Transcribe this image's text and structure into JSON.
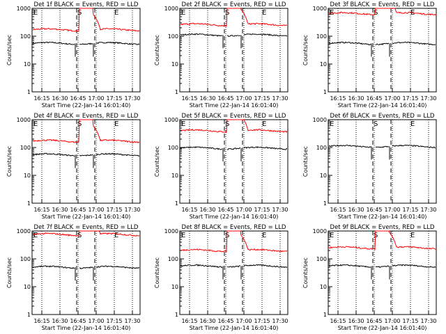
{
  "chart_data": [
    {
      "type": "line",
      "title": "Det 1f BLACK = Events, RED = LLD",
      "xlabel": "Start Time (22-Jan-14 16:01:40)",
      "ylabel": "Counts/sec",
      "yscale": "log",
      "ylim": [
        1,
        1000
      ],
      "x_ticks": [
        "16:15",
        "16:30",
        "16:45",
        "17:00",
        "17:15",
        "17:30"
      ],
      "y_ticks": [
        "1",
        "10",
        "100",
        "1000"
      ],
      "annotations": [
        "E",
        "S",
        "E"
      ],
      "series": [
        {
          "color": "#000000",
          "level": 55,
          "spike": false
        },
        {
          "color": "#ff0000",
          "level": 170,
          "spike": true
        }
      ]
    },
    {
      "type": "line",
      "title": "Det 2f BLACK = Events, RED = LLD",
      "xlabel": "Start Time (22-Jan-14 16:01:40)",
      "ylabel": "Counts/sec",
      "yscale": "log",
      "ylim": [
        1,
        1000
      ],
      "x_ticks": [
        "16:15",
        "16:30",
        "16:45",
        "17:00",
        "17:15",
        "17:30"
      ],
      "y_ticks": [
        "1",
        "10",
        "100",
        "1000"
      ],
      "annotations": [
        "E",
        "S",
        "E"
      ],
      "series": [
        {
          "color": "#000000",
          "level": 110,
          "spike": false
        },
        {
          "color": "#ff0000",
          "level": 260,
          "spike": true
        }
      ]
    },
    {
      "type": "line",
      "title": "Det 3f BLACK = Events, RED = LLD",
      "xlabel": "Start Time (22-Jan-14 16:01:40)",
      "ylabel": "Counts/sec",
      "yscale": "log",
      "ylim": [
        1,
        1000
      ],
      "x_ticks": [
        "16:15",
        "16:30",
        "16:45",
        "17:00",
        "17:15",
        "17:30"
      ],
      "y_ticks": [
        "1",
        "10",
        "100",
        "1000"
      ],
      "annotations": [
        "E",
        "S",
        "E"
      ],
      "series": [
        {
          "color": "#000000",
          "level": 55,
          "spike": false
        },
        {
          "color": "#ff0000",
          "level": 650,
          "spike": true
        }
      ]
    },
    {
      "type": "line",
      "title": "Det 4f BLACK = Events, RED = LLD",
      "xlabel": "Start Time (22-Jan-14 16:01:40)",
      "ylabel": "Counts/sec",
      "yscale": "log",
      "ylim": [
        1,
        1000
      ],
      "x_ticks": [
        "16:15",
        "16:30",
        "16:45",
        "17:00",
        "17:15",
        "17:30"
      ],
      "y_ticks": [
        "1",
        "10",
        "100",
        "1000"
      ],
      "annotations": [
        "E",
        "S",
        "E"
      ],
      "series": [
        {
          "color": "#000000",
          "level": 55,
          "spike": false
        },
        {
          "color": "#ff0000",
          "level": 170,
          "spike": true
        }
      ]
    },
    {
      "type": "line",
      "title": "Det 5f BLACK = Events, RED = LLD",
      "xlabel": "Start Time (22-Jan-14 16:01:40)",
      "ylabel": "Counts/sec",
      "yscale": "log",
      "ylim": [
        1,
        1000
      ],
      "x_ticks": [
        "16:15",
        "16:30",
        "16:45",
        "17:00",
        "17:15",
        "17:30"
      ],
      "y_ticks": [
        "1",
        "10",
        "100",
        "1000"
      ],
      "annotations": [
        "E",
        "S",
        "E"
      ],
      "series": [
        {
          "color": "#000000",
          "level": 95,
          "spike": false
        },
        {
          "color": "#ff0000",
          "level": 400,
          "spike": true
        }
      ]
    },
    {
      "type": "line",
      "title": "Det 6f BLACK = Events, RED = LLD",
      "xlabel": "Start Time (22-Jan-14 16:01:40)",
      "ylabel": "Counts/sec",
      "yscale": "log",
      "ylim": [
        1,
        1000
      ],
      "x_ticks": [
        "16:15",
        "16:30",
        "16:45",
        "17:00",
        "17:15",
        "17:30"
      ],
      "y_ticks": [
        "1",
        "10",
        "100",
        "1000"
      ],
      "annotations": [
        "E",
        "S",
        "E"
      ],
      "series": [
        {
          "color": "#000000",
          "level": 110,
          "spike": false
        }
      ]
    },
    {
      "type": "line",
      "title": "Det 7f BLACK = Events, RED = LLD",
      "xlabel": "Start Time (22-Jan-14 16:01:40)",
      "ylabel": "Counts/sec",
      "yscale": "log",
      "ylim": [
        1,
        1000
      ],
      "x_ticks": [
        "16:15",
        "16:30",
        "16:45",
        "17:00",
        "17:15",
        "17:30"
      ],
      "y_ticks": [
        "1",
        "10",
        "100",
        "1000"
      ],
      "annotations": [
        "E",
        "S",
        "E"
      ],
      "series": [
        {
          "color": "#000000",
          "level": 50,
          "spike": false
        },
        {
          "color": "#ff0000",
          "level": 750,
          "spike": true
        }
      ]
    },
    {
      "type": "line",
      "title": "Det 8f BLACK = Events, RED = LLD",
      "xlabel": "Start Time (22-Jan-14 16:01:40)",
      "ylabel": "Counts/sec",
      "yscale": "log",
      "ylim": [
        1,
        1000
      ],
      "x_ticks": [
        "16:15",
        "16:30",
        "16:45",
        "17:00",
        "17:15",
        "17:30"
      ],
      "y_ticks": [
        "1",
        "10",
        "100",
        "1000"
      ],
      "annotations": [
        "E",
        "S",
        "E"
      ],
      "series": [
        {
          "color": "#000000",
          "level": 55,
          "spike": false
        },
        {
          "color": "#ff0000",
          "level": 200,
          "spike": true
        }
      ]
    },
    {
      "type": "line",
      "title": "Det 9f BLACK = Events, RED = LLD",
      "xlabel": "Start Time (22-Jan-14 16:01:40)",
      "ylabel": "Counts/sec",
      "yscale": "log",
      "ylim": [
        1,
        1000
      ],
      "x_ticks": [
        "16:15",
        "16:30",
        "16:45",
        "17:00",
        "17:15",
        "17:30"
      ],
      "y_ticks": [
        "1",
        "10",
        "100",
        "1000"
      ],
      "annotations": [
        "E",
        "S",
        "E"
      ],
      "series": [
        {
          "color": "#000000",
          "level": 55,
          "spike": false
        },
        {
          "color": "#ff0000",
          "level": 250,
          "spike": true
        }
      ]
    }
  ]
}
